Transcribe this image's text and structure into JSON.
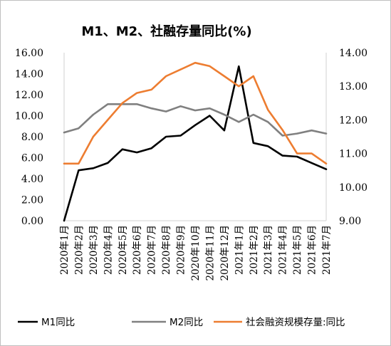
{
  "chart_data": {
    "type": "line",
    "title": "M1、M2、社融存量同比(%)",
    "categories": [
      "2020年1月",
      "2020年2月",
      "2020年3月",
      "2020年4月",
      "2020年5月",
      "2020年6月",
      "2020年7月",
      "2020年8月",
      "2020年9月",
      "2020年10月",
      "2020年11月",
      "2020年12月",
      "2021年1月",
      "2021年2月",
      "2021年3月",
      "2021年4月",
      "2021年5月",
      "2021年6月",
      "2021年7月"
    ],
    "y_left": {
      "ticks": [
        "0.00",
        "2.00",
        "4.00",
        "6.00",
        "8.00",
        "10.00",
        "12.00",
        "14.00",
        "16.00"
      ],
      "range": [
        0,
        16
      ]
    },
    "y_right": {
      "ticks": [
        "9.00",
        "10.00",
        "11.00",
        "12.00",
        "13.00",
        "14.00"
      ],
      "range": [
        9,
        14
      ]
    },
    "grid": false,
    "legend_position": "bottom",
    "series": [
      {
        "name": "M1同比",
        "axis": "left",
        "color": "#000000",
        "values": [
          0.0,
          4.8,
          5.0,
          5.5,
          6.8,
          6.5,
          6.9,
          8.0,
          8.1,
          9.1,
          10.0,
          8.6,
          14.7,
          7.4,
          7.1,
          6.2,
          6.1,
          5.5,
          4.9
        ]
      },
      {
        "name": "M2同比",
        "axis": "left",
        "color": "#808080",
        "values": [
          8.4,
          8.8,
          10.1,
          11.1,
          11.1,
          11.1,
          10.7,
          10.4,
          10.9,
          10.5,
          10.7,
          10.1,
          9.4,
          10.1,
          9.4,
          8.1,
          8.3,
          8.6,
          8.3
        ]
      },
      {
        "name": "社会融资规模存量:同比",
        "axis": "right",
        "color": "#ED7D31",
        "values": [
          10.7,
          10.7,
          11.5,
          12.0,
          12.5,
          12.8,
          12.9,
          13.3,
          13.5,
          13.7,
          13.6,
          13.3,
          13.0,
          13.3,
          12.3,
          11.7,
          11.0,
          11.0,
          10.7
        ]
      }
    ]
  }
}
